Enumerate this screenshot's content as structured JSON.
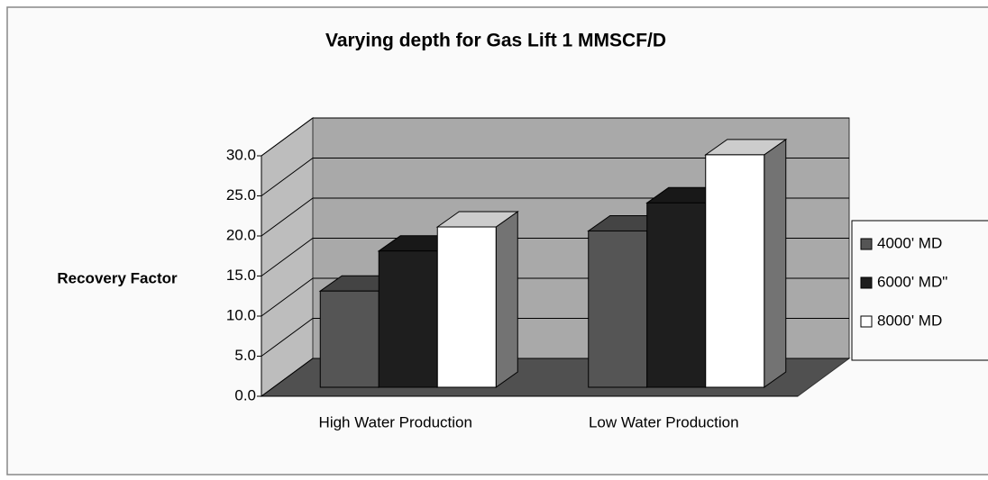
{
  "chart_data": {
    "type": "bar3d",
    "title": "Varying depth for Gas Lift 1 MMSCF/D",
    "y_label": "Recovery Factor",
    "categories": [
      "High Water Production",
      "Low Water Production"
    ],
    "series": [
      {
        "name": "4000' MD",
        "color": "#555555",
        "values": [
          12.0,
          19.5
        ]
      },
      {
        "name": "6000' MD\"",
        "color": "#1e1e1e",
        "values": [
          17.0,
          23.0
        ]
      },
      {
        "name": "8000' MD",
        "color": "#ffffff",
        "values": [
          20.0,
          29.0
        ]
      }
    ],
    "ylim": [
      0,
      30
    ],
    "yticks": [
      {
        "value": 0,
        "label": "0.0"
      },
      {
        "value": 5,
        "label": "5.0"
      },
      {
        "value": 10,
        "label": "10.0"
      },
      {
        "value": 15,
        "label": "15.0"
      },
      {
        "value": 20,
        "label": "20.0"
      },
      {
        "value": 25,
        "label": "25.0"
      },
      {
        "value": 30,
        "label": "30.0"
      }
    ],
    "grid": true,
    "legend": "right"
  }
}
